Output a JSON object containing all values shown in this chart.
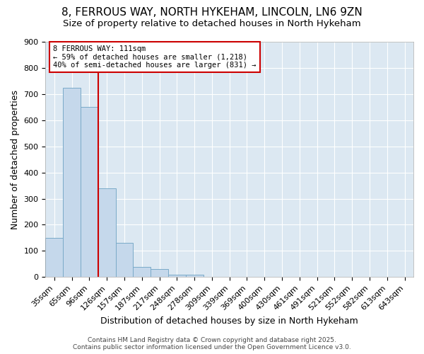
{
  "title1": "8, FERROUS WAY, NORTH HYKEHAM, LINCOLN, LN6 9ZN",
  "title2": "Size of property relative to detached houses in North Hykeham",
  "xlabel": "Distribution of detached houses by size in North Hykeham",
  "ylabel": "Number of detached properties",
  "categories": [
    "35sqm",
    "65sqm",
    "96sqm",
    "126sqm",
    "157sqm",
    "187sqm",
    "217sqm",
    "248sqm",
    "278sqm",
    "309sqm",
    "339sqm",
    "369sqm",
    "400sqm",
    "430sqm",
    "461sqm",
    "491sqm",
    "521sqm",
    "552sqm",
    "582sqm",
    "613sqm",
    "643sqm"
  ],
  "values": [
    150,
    725,
    650,
    340,
    130,
    40,
    30,
    10,
    10,
    0,
    0,
    0,
    0,
    0,
    0,
    0,
    0,
    0,
    0,
    0,
    0
  ],
  "bar_color": "#c5d8eb",
  "bar_edge_color": "#7aaac8",
  "vline_x": 2.5,
  "vline_color": "#cc0000",
  "annotation_line1": "8 FERROUS WAY: 111sqm",
  "annotation_line2": "← 59% of detached houses are smaller (1,218)",
  "annotation_line3": "40% of semi-detached houses are larger (831) →",
  "annotation_box_color": "#cc0000",
  "ylim": [
    0,
    900
  ],
  "yticks": [
    0,
    100,
    200,
    300,
    400,
    500,
    600,
    700,
    800,
    900
  ],
  "fig_bg_color": "#ffffff",
  "plot_bg_color": "#dce8f2",
  "grid_color": "#ffffff",
  "footer": "Contains HM Land Registry data © Crown copyright and database right 2025.\nContains public sector information licensed under the Open Government Licence v3.0.",
  "title1_fontsize": 11,
  "title2_fontsize": 9.5,
  "xlabel_fontsize": 9,
  "ylabel_fontsize": 9,
  "tick_fontsize": 8,
  "footer_fontsize": 6.5
}
